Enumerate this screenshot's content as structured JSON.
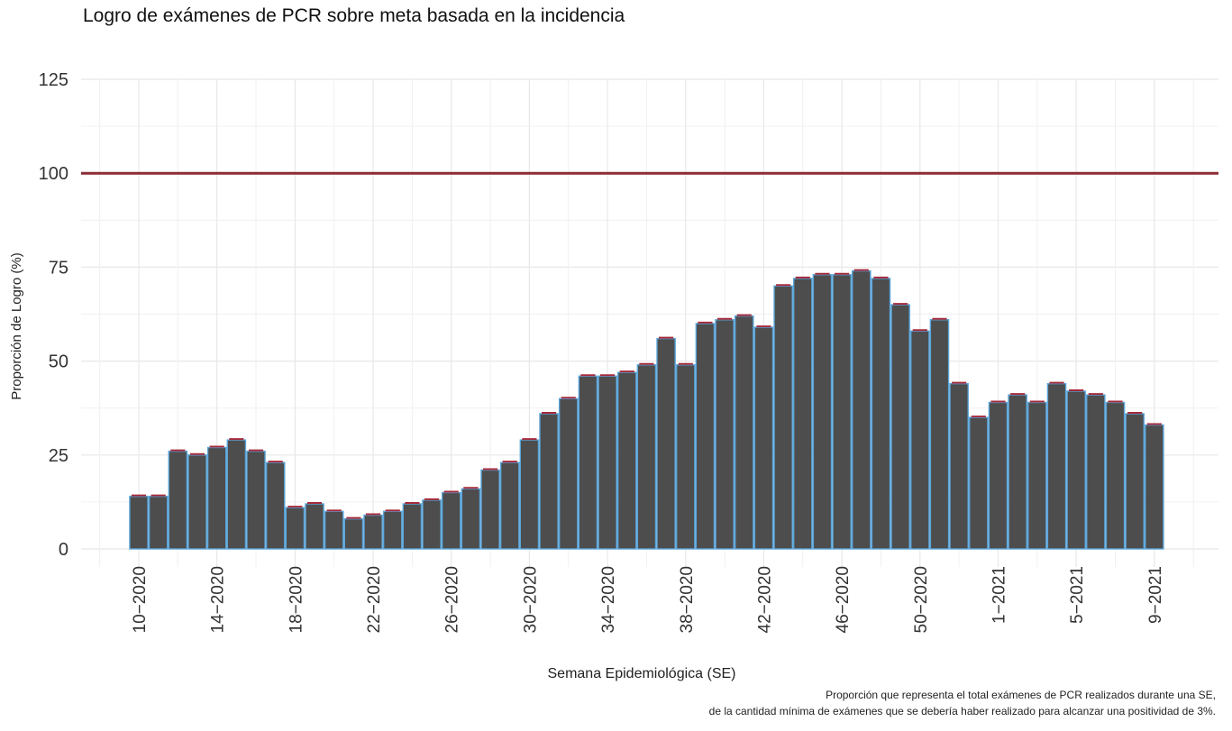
{
  "chart_data": {
    "type": "bar",
    "title": "Logro de exámenes de PCR sobre meta basada en la incidencia",
    "xlabel": "Semana Epidemiológica (SE)",
    "ylabel": "Proporción de Logro (%)",
    "ylim": [
      0,
      125
    ],
    "yticks": [
      0,
      25,
      50,
      75,
      100,
      125
    ],
    "grid": true,
    "reference_line": {
      "y": 100,
      "color": "#8b2b35"
    },
    "colors": {
      "bar_fill": "#4d4d4d",
      "bar_outline": "#5aa5da",
      "error_cap": "#a52a3a",
      "grid": "#e8e8e8"
    },
    "x_tick_labels": [
      "10-2020",
      "14-2020",
      "18-2020",
      "22-2020",
      "26-2020",
      "30-2020",
      "34-2020",
      "38-2020",
      "42-2020",
      "46-2020",
      "50-2020",
      "1-2021",
      "5-2021",
      "9-2021"
    ],
    "x_tick_indices": [
      0,
      4,
      8,
      12,
      16,
      20,
      24,
      28,
      32,
      36,
      40,
      44,
      48,
      52
    ],
    "categories": [
      "10-2020",
      "11-2020",
      "12-2020",
      "13-2020",
      "14-2020",
      "15-2020",
      "16-2020",
      "17-2020",
      "18-2020",
      "19-2020",
      "20-2020",
      "21-2020",
      "22-2020",
      "23-2020",
      "24-2020",
      "25-2020",
      "26-2020",
      "27-2020",
      "28-2020",
      "29-2020",
      "30-2020",
      "31-2020",
      "32-2020",
      "33-2020",
      "34-2020",
      "35-2020",
      "36-2020",
      "37-2020",
      "38-2020",
      "39-2020",
      "40-2020",
      "41-2020",
      "42-2020",
      "43-2020",
      "44-2020",
      "45-2020",
      "46-2020",
      "47-2020",
      "48-2020",
      "49-2020",
      "50-2020",
      "51-2020",
      "52-2020",
      "53-2020",
      "1-2021",
      "2-2021",
      "3-2021",
      "4-2021",
      "5-2021",
      "6-2021",
      "7-2021",
      "8-2021",
      "9-2021"
    ],
    "values": [
      14,
      14,
      26,
      25,
      27,
      29,
      26,
      23,
      11,
      12,
      10,
      8,
      9,
      10,
      12,
      13,
      15,
      16,
      21,
      23,
      29,
      36,
      40,
      46,
      46,
      47,
      49,
      56,
      49,
      60,
      61,
      62,
      59,
      70,
      72,
      73,
      73,
      74,
      72,
      65,
      58,
      61,
      44,
      35,
      39,
      41,
      39,
      44,
      42,
      41,
      39,
      36,
      33
    ],
    "caption": [
      "Proporción que representa el total exámenes de PCR realizados durante una SE,",
      "de la cantidad mínima de exámenes que se debería haber  realizado para alcanzar una positividad de 3%."
    ]
  }
}
